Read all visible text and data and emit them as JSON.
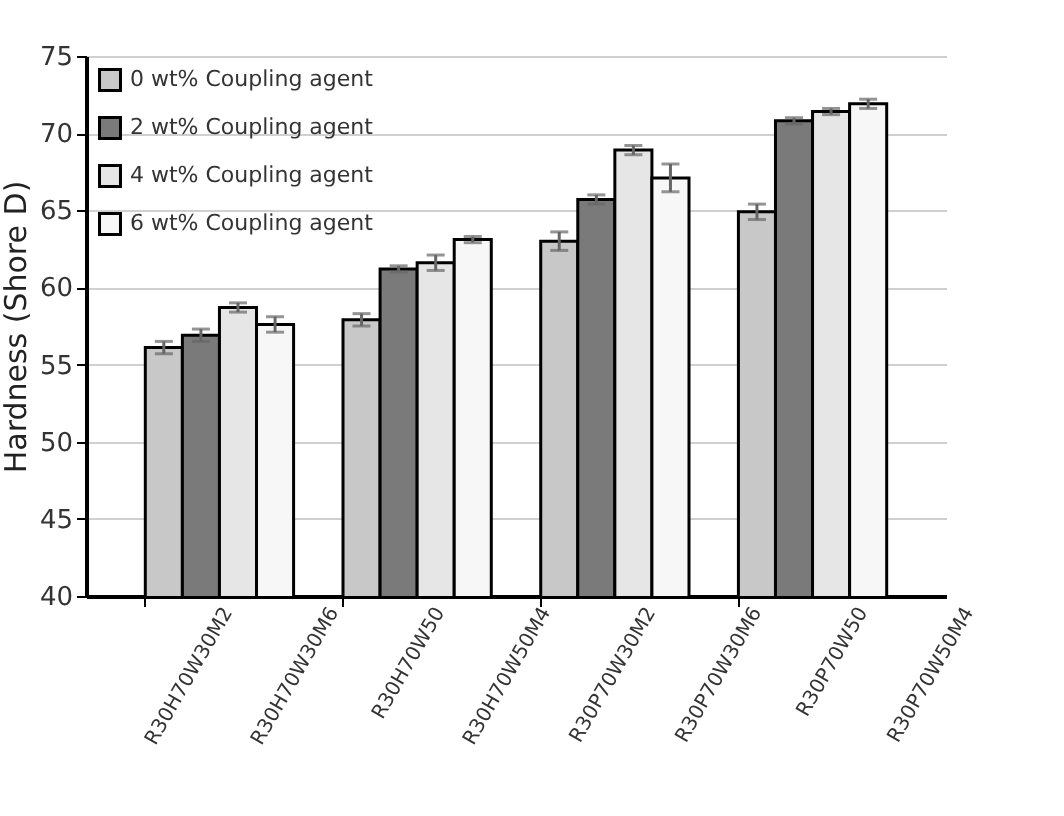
{
  "chart_data": {
    "type": "bar",
    "ylabel": "Hardness (Shore D)",
    "categories": [
      null,
      null,
      null,
      null
    ],
    "series": [
      {
        "name": "0 wt% Coupling agent",
        "color": "#c8c8c8",
        "values": [
          56.1,
          57.9,
          63.0,
          64.9
        ],
        "errors": [
          0.4,
          0.4,
          0.6,
          0.5
        ]
      },
      {
        "name": "2 wt% Coupling agent",
        "color": "#7a7a7a",
        "values": [
          56.9,
          61.2,
          65.7,
          70.8
        ],
        "errors": [
          0.4,
          0.2,
          0.3,
          0.2
        ]
      },
      {
        "name": "4 wt% Coupling agent",
        "color": "#e6e6e6",
        "values": [
          58.7,
          61.6,
          68.9,
          71.4
        ],
        "errors": [
          0.3,
          0.5,
          0.3,
          0.2
        ]
      },
      {
        "name": "6 wt% Coupling agent",
        "color": "#f7f7f7",
        "values": [
          57.6,
          63.1,
          67.1,
          71.9
        ],
        "errors": [
          0.5,
          0.2,
          0.9,
          0.3
        ]
      }
    ],
    "ylim": [
      40,
      75
    ],
    "yticks": [
      40,
      45,
      50,
      55,
      60,
      65,
      70,
      75
    ],
    "grid": "y",
    "legend": "top left",
    "annotations": [
      "R30H70W30M2",
      "R30H70W30M6",
      "R30H70W50",
      "R30H70W50M4",
      "R30P70W30M2",
      "R30P70W30M6",
      "R30P70W50",
      "R30P70W50M4"
    ]
  }
}
